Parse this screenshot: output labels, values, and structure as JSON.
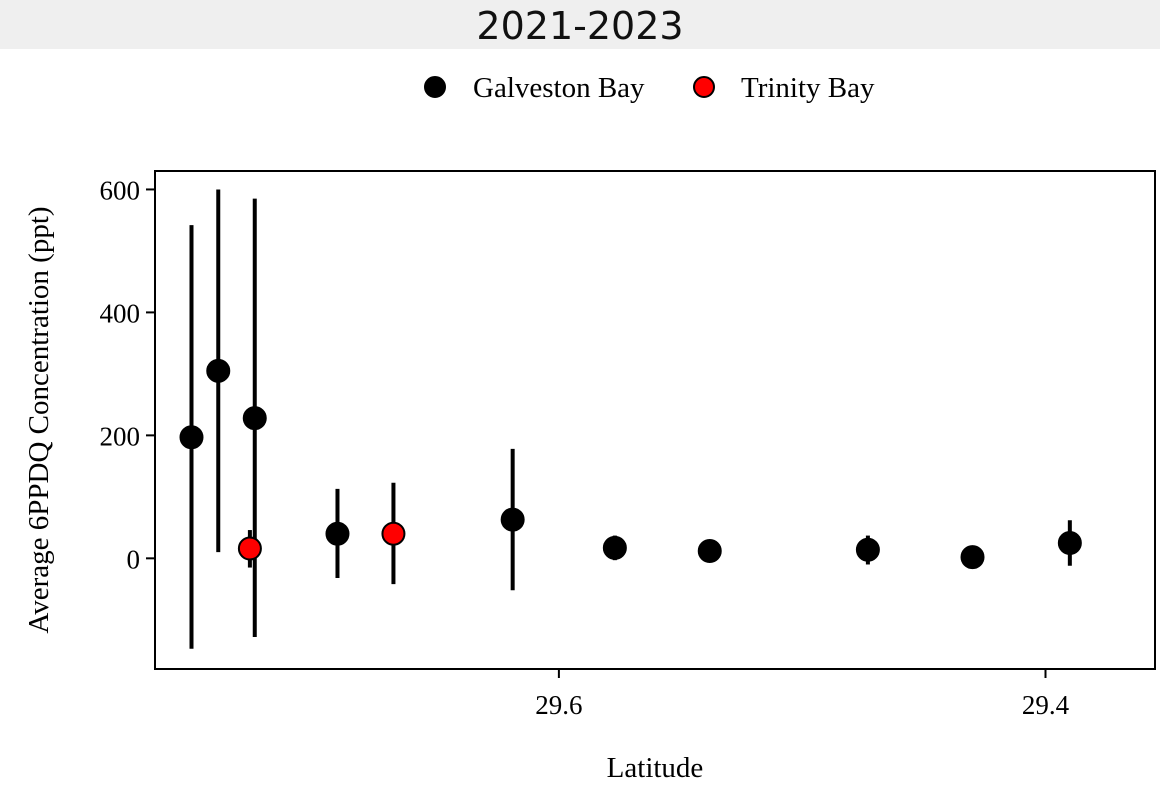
{
  "title": "2021-2023",
  "chart_data": {
    "type": "scatter",
    "title": "2021-2023",
    "xlabel": "Latitude",
    "ylabel": "Average 6PPDQ Concentration (ppt)",
    "x_reversed": true,
    "xlim": [
      29.766,
      29.355
    ],
    "ylim": [
      -180,
      630
    ],
    "x_ticks": [
      29.6,
      29.4
    ],
    "x_tick_labels": [
      "29.6",
      "29.4"
    ],
    "y_ticks": [
      0,
      200,
      400,
      600
    ],
    "y_tick_labels": [
      "0",
      "200",
      "400",
      "600"
    ],
    "grid": false,
    "legend_position": "top-center",
    "series": [
      {
        "name": "Galveston Bay",
        "color": "#000000",
        "points": [
          {
            "x": 29.751,
            "y": 197,
            "lo": -147,
            "hi": 542
          },
          {
            "x": 29.74,
            "y": 305,
            "lo": 10,
            "hi": 600
          },
          {
            "x": 29.725,
            "y": 228,
            "lo": -128,
            "hi": 585
          },
          {
            "x": 29.691,
            "y": 40,
            "lo": -32,
            "hi": 113
          },
          {
            "x": 29.619,
            "y": 63,
            "lo": -52,
            "hi": 178
          },
          {
            "x": 29.577,
            "y": 17,
            "lo": -3,
            "hi": 37
          },
          {
            "x": 29.538,
            "y": 12,
            "lo": 12,
            "hi": 12
          },
          {
            "x": 29.473,
            "y": 14,
            "lo": -10,
            "hi": 37
          },
          {
            "x": 29.43,
            "y": 2,
            "lo": 2,
            "hi": 2
          },
          {
            "x": 29.39,
            "y": 25,
            "lo": -12,
            "hi": 62
          }
        ]
      },
      {
        "name": "Trinity Bay",
        "color": "#ff0000",
        "points": [
          {
            "x": 29.727,
            "y": 16,
            "lo": -15,
            "hi": 46
          },
          {
            "x": 29.668,
            "y": 40,
            "lo": -42,
            "hi": 123
          }
        ]
      }
    ]
  }
}
